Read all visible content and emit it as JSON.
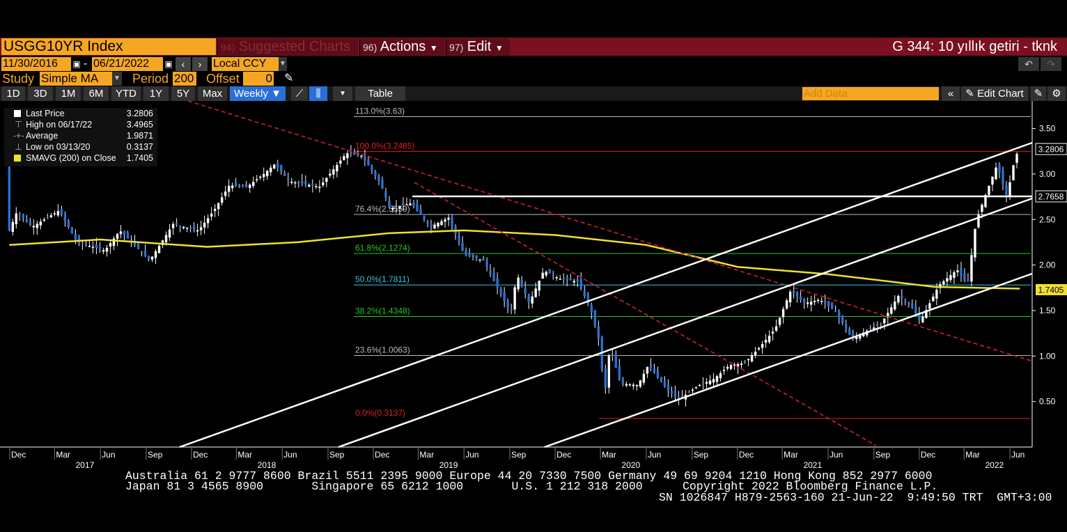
{
  "header": {
    "ticker": "USGG10YR Index",
    "menus": [
      {
        "num": "94)",
        "label": "Suggested Charts"
      },
      {
        "num": "96)",
        "label": "Actions"
      },
      {
        "num": "97)",
        "label": "Edit"
      }
    ],
    "title_right": "G 344: 10 yıllık getiri - tknk"
  },
  "range": {
    "start": "11/30/2016",
    "end": "06/21/2022",
    "currency": "Local CCY"
  },
  "study": {
    "label": "Study",
    "type": "Simple MA",
    "period_label": "Period",
    "period": "200",
    "offset_label": "Offset",
    "offset": "0"
  },
  "periods": [
    "1D",
    "3D",
    "1M",
    "6M",
    "YTD",
    "1Y",
    "5Y",
    "Max"
  ],
  "frequency": "Weekly",
  "table_label": "Table",
  "add_data_placeholder": "Add Data",
  "edit_chart_label": "Edit Chart",
  "legend": [
    {
      "key": "Last Price",
      "value": "3.2806"
    },
    {
      "key": "High on 06/17/22",
      "value": "3.4965"
    },
    {
      "key": "Average",
      "value": "1.9871"
    },
    {
      "key": "Low on 03/13/20",
      "value": "0.3137"
    },
    {
      "key": "SMAVG (200)  on Close",
      "value": "1.7405"
    }
  ],
  "chart_data": {
    "type": "candlestick",
    "ylim": [
      0.0,
      3.8
    ],
    "y_ticks": [
      "0.50",
      "1.00",
      "1.50",
      "2.00",
      "2.50",
      "3.00",
      "3.50"
    ],
    "x_month_labels": [
      "Dec",
      "Mar",
      "Jun",
      "Sep",
      "Dec",
      "Mar",
      "Jun",
      "Sep",
      "Dec",
      "Mar",
      "Jun",
      "Sep",
      "Dec",
      "Mar",
      "Jun",
      "Sep",
      "Dec",
      "Mar",
      "Jun",
      "Sep",
      "Dec",
      "Mar",
      "Jun"
    ],
    "x_year_labels": [
      "2017",
      "2018",
      "2019",
      "2020",
      "2021",
      "2022"
    ],
    "fib_levels": [
      {
        "label": "113.0%(3.63)",
        "value": 3.63,
        "color": "#bbbbbb"
      },
      {
        "label": "100.0%(3.2485)",
        "value": 3.2485,
        "color": "#e02020"
      },
      {
        "label": "76.4%(2.5559)",
        "value": 2.5559,
        "color": "#bbbbbb"
      },
      {
        "label": "61.8%(2.1274)",
        "value": 2.1274,
        "color": "#22cc22"
      },
      {
        "label": "50.0%(1.7811)",
        "value": 1.7811,
        "color": "#33c8e0"
      },
      {
        "label": "38.2%(1.4348)",
        "value": 1.4348,
        "color": "#22cc22"
      },
      {
        "label": "23.6%(1.0063)",
        "value": 1.0063,
        "color": "#bbbbbb"
      },
      {
        "label": "0.0%(0.3137)",
        "value": 0.3137,
        "color": "#e02020"
      }
    ],
    "last_price_tag": "3.2806",
    "hline_tag": "2.7658",
    "ma_tag": "1.7405",
    "price_path": [
      [
        "2016-11-30",
        2.38
      ],
      [
        "2016-12-15",
        2.58
      ],
      [
        "2017-01-15",
        2.42
      ],
      [
        "2017-03-10",
        2.6
      ],
      [
        "2017-04-15",
        2.25
      ],
      [
        "2017-06-10",
        2.16
      ],
      [
        "2017-07-10",
        2.38
      ],
      [
        "2017-09-08",
        2.05
      ],
      [
        "2017-10-25",
        2.45
      ],
      [
        "2017-12-15",
        2.38
      ],
      [
        "2018-01-15",
        2.6
      ],
      [
        "2018-02-15",
        2.88
      ],
      [
        "2018-03-20",
        2.85
      ],
      [
        "2018-04-25",
        3.0
      ],
      [
        "2018-05-17",
        3.11
      ],
      [
        "2018-06-15",
        2.92
      ],
      [
        "2018-08-15",
        2.86
      ],
      [
        "2018-10-08",
        3.23
      ],
      [
        "2018-11-08",
        3.2
      ],
      [
        "2018-12-15",
        2.9
      ],
      [
        "2019-01-03",
        2.62
      ],
      [
        "2019-02-15",
        2.68
      ],
      [
        "2019-03-25",
        2.42
      ],
      [
        "2019-05-01",
        2.52
      ],
      [
        "2019-06-01",
        2.12
      ],
      [
        "2019-07-10",
        2.05
      ],
      [
        "2019-08-10",
        1.72
      ],
      [
        "2019-09-03",
        1.47
      ],
      [
        "2019-09-15",
        1.9
      ],
      [
        "2019-10-10",
        1.58
      ],
      [
        "2019-11-08",
        1.94
      ],
      [
        "2019-12-10",
        1.85
      ],
      [
        "2020-01-15",
        1.82
      ],
      [
        "2020-02-10",
        1.52
      ],
      [
        "2020-02-28",
        1.15
      ],
      [
        "2020-03-09",
        0.55
      ],
      [
        "2020-03-20",
        1.1
      ],
      [
        "2020-04-10",
        0.7
      ],
      [
        "2020-05-15",
        0.68
      ],
      [
        "2020-06-05",
        0.9
      ],
      [
        "2020-07-15",
        0.62
      ],
      [
        "2020-08-05",
        0.52
      ],
      [
        "2020-09-15",
        0.68
      ],
      [
        "2020-10-15",
        0.75
      ],
      [
        "2020-11-15",
        0.9
      ],
      [
        "2020-12-15",
        0.92
      ],
      [
        "2021-01-15",
        1.1
      ],
      [
        "2021-02-15",
        1.3
      ],
      [
        "2021-03-18",
        1.72
      ],
      [
        "2021-04-15",
        1.58
      ],
      [
        "2021-05-15",
        1.62
      ],
      [
        "2021-06-15",
        1.5
      ],
      [
        "2021-07-20",
        1.18
      ],
      [
        "2021-08-15",
        1.27
      ],
      [
        "2021-09-15",
        1.35
      ],
      [
        "2021-10-20",
        1.66
      ],
      [
        "2021-11-15",
        1.55
      ],
      [
        "2021-12-03",
        1.38
      ],
      [
        "2022-01-10",
        1.78
      ],
      [
        "2022-02-15",
        1.95
      ],
      [
        "2022-03-08",
        1.78
      ],
      [
        "2022-03-25",
        2.48
      ],
      [
        "2022-04-15",
        2.8
      ],
      [
        "2022-05-06",
        3.1
      ],
      [
        "2022-05-26",
        2.75
      ],
      [
        "2022-06-10",
        3.15
      ],
      [
        "2022-06-17",
        3.25
      ],
      [
        "2022-06-21",
        3.2806
      ]
    ],
    "ma_path": [
      [
        "2016-11-30",
        2.22
      ],
      [
        "2017-06-01",
        2.28
      ],
      [
        "2018-01-01",
        2.2
      ],
      [
        "2018-07-01",
        2.25
      ],
      [
        "2019-01-01",
        2.35
      ],
      [
        "2019-06-01",
        2.38
      ],
      [
        "2019-12-01",
        2.33
      ],
      [
        "2020-06-01",
        2.22
      ],
      [
        "2020-12-01",
        1.98
      ],
      [
        "2021-06-01",
        1.9
      ],
      [
        "2022-01-01",
        1.76
      ],
      [
        "2022-06-21",
        1.7405
      ]
    ]
  },
  "footer": {
    "line1": "Australia 61 2 9777 8600 Brazil 5511 2395 9000 Europe 44 20 7330 7500 Germany 49 69 9204 1210 Hong Kong 852 2977 6000",
    "line2a": "Japan 81 3 4565 8900       Singapore 65 6212 1000       U.S. 1 212 318 2000",
    "line2b": "Copyright 2022 Bloomberg Finance L.P.",
    "line3": "SN 1026847 H879-2563-160 21-Jun-22  9:49:50 TRT  GMT+3:00"
  },
  "colors": {
    "orange": "#f5a623",
    "bar_red": "#7a1020",
    "ma_yellow": "#f0e030",
    "candle_blue": "#2a6fd6",
    "trend_red": "#cc2233"
  }
}
